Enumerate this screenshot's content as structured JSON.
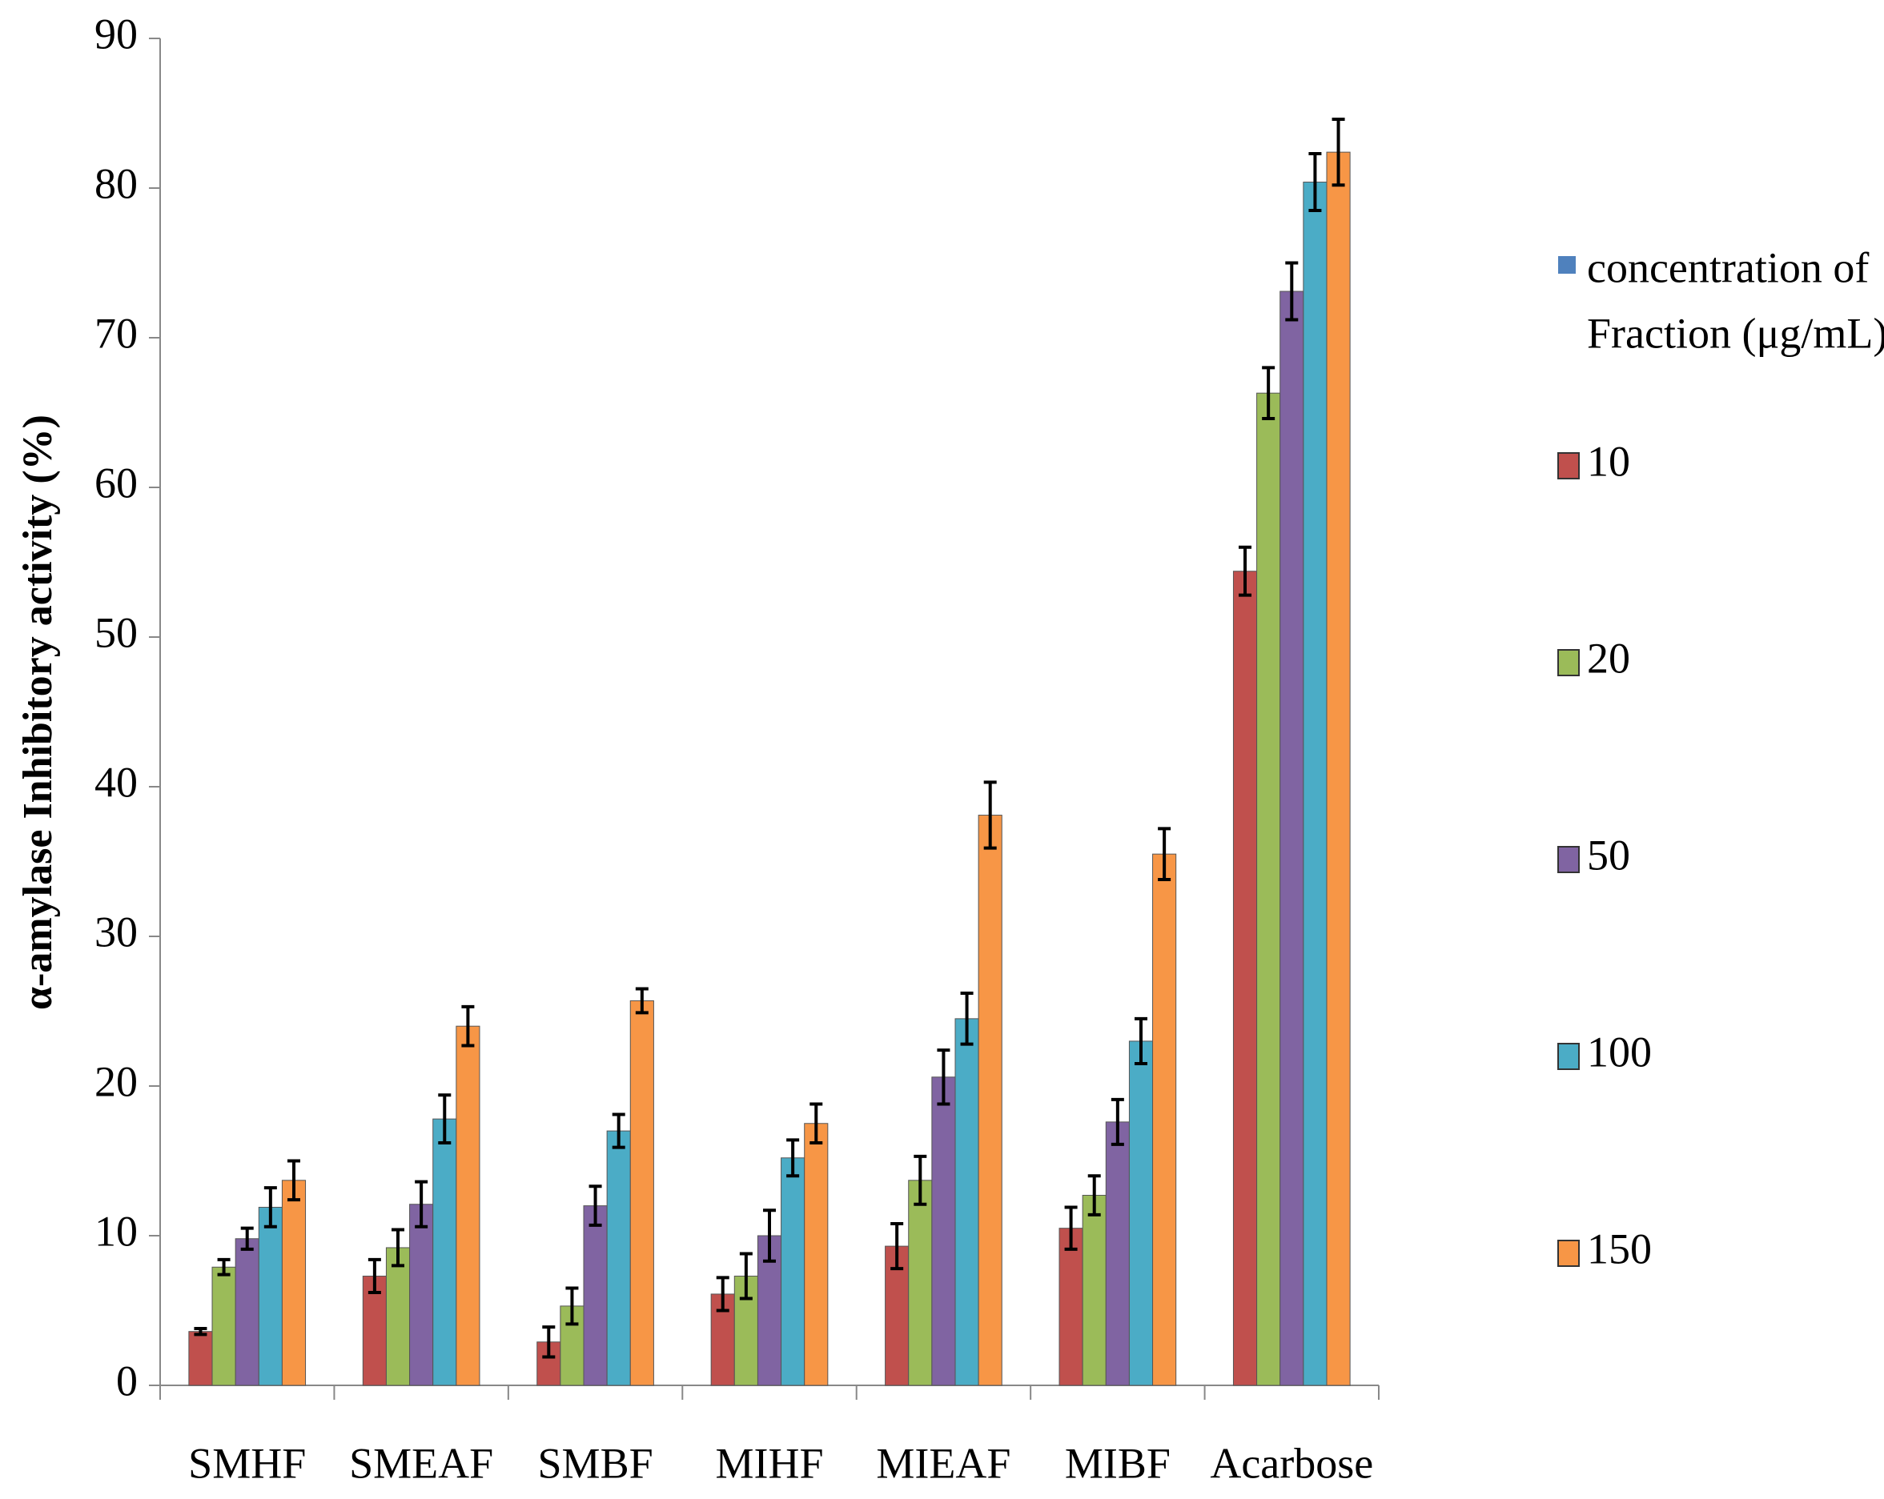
{
  "chart_data": {
    "type": "bar",
    "y_label": "α-amylase Inhibitory activity (%)",
    "categories": [
      "SMHF",
      "SMEAF",
      "SMBF",
      "MIHF",
      "MIEAF",
      "MIBF",
      "Acarbose"
    ],
    "legend_title": [
      "concentration of",
      "Fraction (μg/mL)"
    ],
    "legend_title_color": "#4f81bd",
    "series": [
      {
        "name": "10",
        "color": "#c0504d",
        "values": [
          3.6,
          7.3,
          2.9,
          6.1,
          9.3,
          10.5,
          54.4
        ],
        "errors": [
          0.2,
          1.1,
          1.0,
          1.1,
          1.5,
          1.4,
          1.6
        ]
      },
      {
        "name": "20",
        "color": "#9bbb59",
        "values": [
          7.9,
          9.2,
          5.3,
          7.3,
          13.7,
          12.7,
          66.3
        ],
        "errors": [
          0.5,
          1.2,
          1.2,
          1.5,
          1.6,
          1.3,
          1.7
        ]
      },
      {
        "name": "50",
        "color": "#8064a2",
        "values": [
          9.8,
          12.1,
          12.0,
          10.0,
          20.6,
          17.6,
          73.1
        ],
        "errors": [
          0.7,
          1.5,
          1.3,
          1.7,
          1.8,
          1.5,
          1.9
        ]
      },
      {
        "name": "100",
        "color": "#4bacc6",
        "values": [
          11.9,
          17.8,
          17.0,
          15.2,
          24.5,
          23.0,
          80.4
        ],
        "errors": [
          1.3,
          1.6,
          1.1,
          1.2,
          1.7,
          1.5,
          1.9
        ]
      },
      {
        "name": "150",
        "color": "#f79646",
        "values": [
          13.7,
          24.0,
          25.7,
          17.5,
          38.1,
          35.5,
          82.4
        ],
        "errors": [
          1.3,
          1.3,
          0.8,
          1.3,
          2.2,
          1.7,
          2.2
        ]
      }
    ],
    "ylim": [
      0,
      90
    ],
    "yticks": [
      0,
      10,
      20,
      30,
      40,
      50,
      60,
      70,
      80,
      90
    ]
  }
}
